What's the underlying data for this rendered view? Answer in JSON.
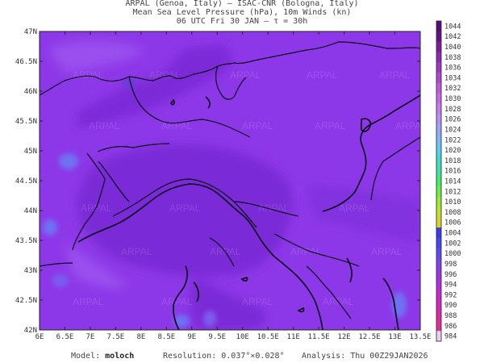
{
  "header": {
    "line1": "ARPAL (Genoa, Italy)  —  ISAC-CNR (Bologna, Italy)",
    "line2": "Mean Sea Level Pressure (hPa), 10m Winds (kn)",
    "line3": "06 UTC Fri 30 JAN  —  τ = 30h"
  },
  "map": {
    "lat_labels": [
      "47N",
      "46.5N",
      "46N",
      "45.5N",
      "45N",
      "44.5N",
      "44N",
      "43.5N",
      "43N",
      "42.5N",
      "42N"
    ],
    "lon_labels": [
      "6E",
      "6.5E",
      "7E",
      "7.5E",
      "8E",
      "8.5E",
      "9E",
      "9.5E",
      "10E",
      "10.5E",
      "11E",
      "11.5E",
      "12E",
      "12.5E",
      "13E",
      "13.5E"
    ],
    "watermark": "ARPAL",
    "colors": {
      "field_base": "#8d38e8",
      "field_dark": "#7a2ad6",
      "field_light": "#9a50ee",
      "blue_patch": "#6f6ff2",
      "coast": "#0a0a18"
    }
  },
  "colorbar": {
    "labels": [
      "1044",
      "1042",
      "1040",
      "1038",
      "1036",
      "1034",
      "1032",
      "1030",
      "1028",
      "1026",
      "1024",
      "1022",
      "1020",
      "1018",
      "1016",
      "1014",
      "1012",
      "1010",
      "1008",
      "1006",
      "1004",
      "1002",
      "1000",
      "998",
      "996",
      "994",
      "992",
      "990",
      "988",
      "986",
      "984"
    ],
    "colors": [
      "#5a0a78",
      "#6a0f8c",
      "#7d1aa0",
      "#8f28b4",
      "#a138c4",
      "#b048d4",
      "#bd5ae0",
      "#c46ae8",
      "#c87af0",
      "#b890f4",
      "#9aa6f8",
      "#7cbaf8",
      "#5ccef0",
      "#40dccc",
      "#3ae6a0",
      "#46ec70",
      "#6cee48",
      "#96ec34",
      "#bce42c",
      "#d8d428",
      "#3a3aee",
      "#4a44f0",
      "#5e4cf2",
      "#7a44ee",
      "#9a36e8",
      "#b42ee0",
      "#c828d2",
      "#d626c0",
      "#de28ac",
      "#e42c96",
      "#e8d0ec"
    ]
  },
  "footer": {
    "model_label": "Model:",
    "model_value": "moloch",
    "resolution_label": "Resolution:",
    "resolution_value": "0.037°×0.028°",
    "analysis_label": "Analysis:",
    "analysis_value": "Thu 00Z29JAN2026"
  }
}
